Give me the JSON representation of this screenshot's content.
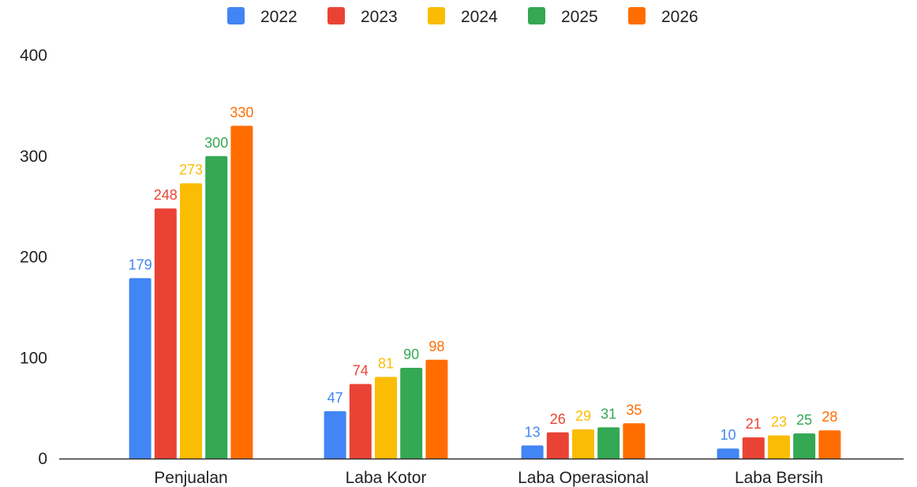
{
  "chart_data": {
    "type": "bar",
    "categories": [
      "Penjualan",
      "Laba Kotor",
      "Laba Operasional",
      "Laba Bersih"
    ],
    "series": [
      {
        "name": "2022",
        "color": "#4285F4",
        "values": [
          179,
          47,
          13,
          10
        ]
      },
      {
        "name": "2023",
        "color": "#EA4335",
        "values": [
          248,
          74,
          26,
          21
        ]
      },
      {
        "name": "2024",
        "color": "#FBBC04",
        "values": [
          273,
          81,
          29,
          23
        ]
      },
      {
        "name": "2025",
        "color": "#34A853",
        "values": [
          300,
          90,
          31,
          25
        ]
      },
      {
        "name": "2026",
        "color": "#FF6D01",
        "values": [
          330,
          98,
          35,
          28
        ]
      }
    ],
    "yticks": [
      0,
      100,
      200,
      300,
      400
    ],
    "ylim": [
      0,
      400
    ],
    "legend_position": "top",
    "grid": false,
    "data_labels": true
  }
}
